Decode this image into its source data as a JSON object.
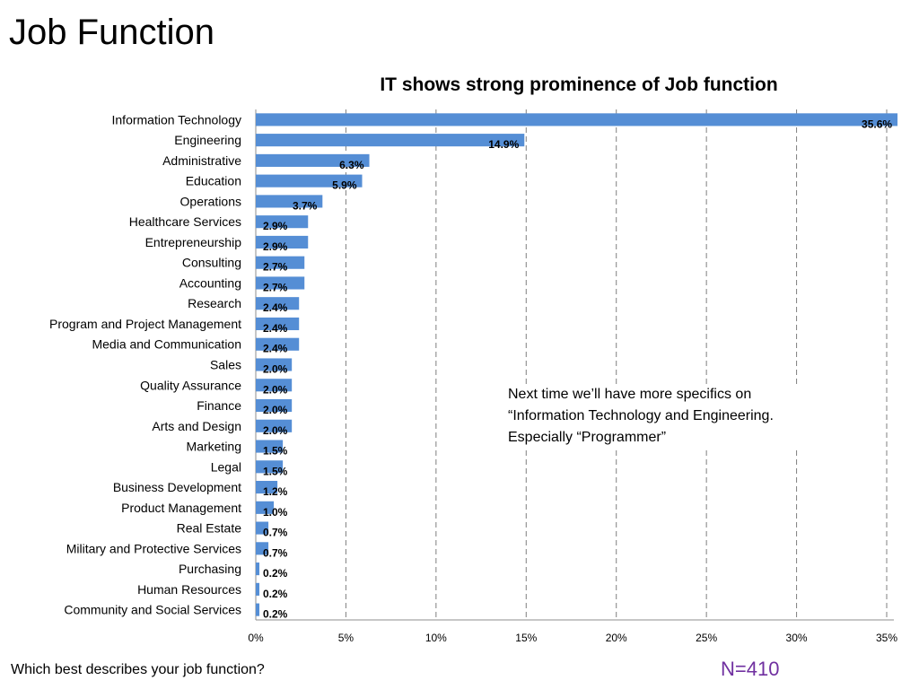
{
  "slide": {
    "title": "Job Function",
    "question": "Which best describes your job function?",
    "sample_size": "N=410",
    "note_lines": [
      "Next time we’ll have more specifics on",
      "“Information Technology and Engineering.",
      "Especially “Programmer”"
    ]
  },
  "chart_data": {
    "type": "bar",
    "orientation": "horizontal",
    "title": "IT shows strong prominence of Job function",
    "categories": [
      "Information Technology",
      "Engineering",
      "Administrative",
      "Education",
      "Operations",
      "Healthcare Services",
      "Entrepreneurship",
      "Consulting",
      "Accounting",
      "Research",
      "Program and Project Management",
      "Media and Communication",
      "Sales",
      "Quality Assurance",
      "Finance",
      "Arts and Design",
      "Marketing",
      "Legal",
      "Business Development",
      "Product Management",
      "Real Estate",
      "Military and Protective Services",
      "Purchasing",
      "Human Resources",
      "Community and Social Services"
    ],
    "values": [
      35.6,
      14.9,
      6.3,
      5.9,
      3.7,
      2.9,
      2.9,
      2.7,
      2.7,
      2.4,
      2.4,
      2.4,
      2.0,
      2.0,
      2.0,
      2.0,
      1.5,
      1.5,
      1.2,
      1.0,
      0.7,
      0.7,
      0.2,
      0.2,
      0.2
    ],
    "value_labels": [
      "35.6%",
      "14.9%",
      "6.3%",
      "5.9%",
      "3.7%",
      "2.9%",
      "2.9%",
      "2.7%",
      "2.7%",
      "2.4%",
      "2.4%",
      "2.4%",
      "2.0%",
      "2.0%",
      "2.0%",
      "2.0%",
      "1.5%",
      "1.5%",
      "1.2%",
      "1.0%",
      "0.7%",
      "0.7%",
      "0.2%",
      "0.2%",
      "0.2%"
    ],
    "xlim": [
      0,
      35
    ],
    "xticks": [
      0,
      5,
      10,
      15,
      20,
      25,
      30,
      35
    ],
    "xtick_labels": [
      "0%",
      "5%",
      "10%",
      "15%",
      "20%",
      "25%",
      "30%",
      "35%"
    ],
    "grid": "vertical-dashed",
    "bar_color": "#558ed5"
  }
}
